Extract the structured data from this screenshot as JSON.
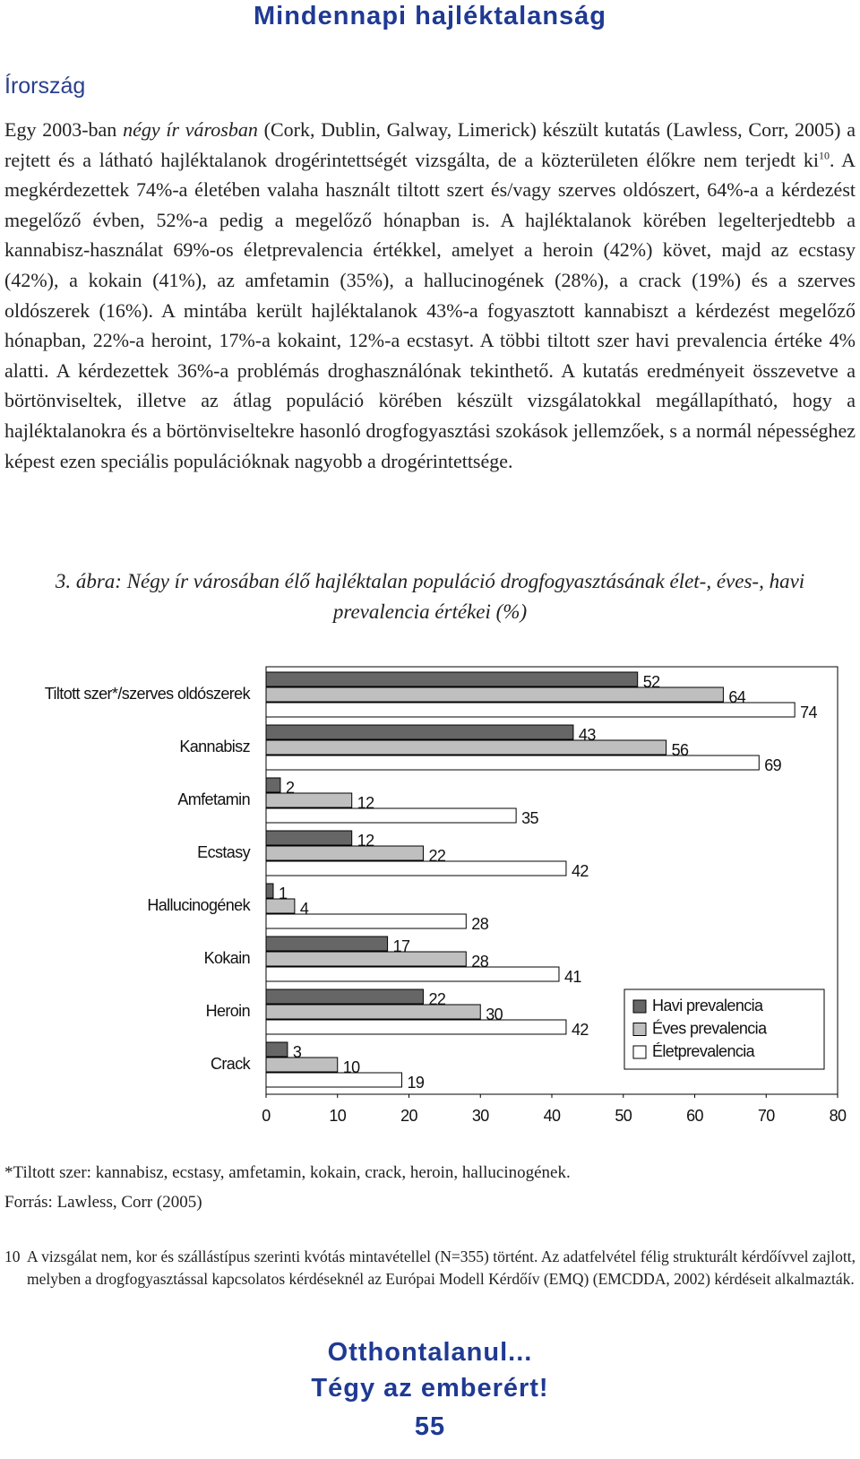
{
  "header": {
    "title": "Mindennapi hajléktalanság"
  },
  "section_title": "Írország",
  "paragraph": [
    "Egy 2003-ban ",
    "négy ír városban",
    " (Cork, Dublin, Galway, Limerick) készült kutatás (Lawless, Corr, 2005) a rejtett és a látható hajléktalanok drogérintettségét vizsgálta, de a közterületen élőkre nem terjedt ki",
    "10",
    ". A megkérdezettek 74%-a életében valaha használt tiltott szert és/vagy szerves oldószert, 64%-a a kérdezést megelőző évben, 52%-a pedig a megelőző hónapban is. A hajléktalanok körében legelterjedtebb a kannabisz-használat 69%-os életprevalencia értékkel, amelyet a heroin (42%) követ, majd az ecstasy (42%), a kokain (41%), az amfetamin (35%), a hallucinogének (28%), a crack (19%) és a szerves oldószerek (16%). A mintába került hajléktalanok 43%-a fogyasztott kannabiszt a kérdezést megelőző hónapban, 22%-a heroint, 17%-a kokaint, 12%-a ecstasyt. A többi tiltott szer havi prevalencia értéke 4% alatti. A kérdezettek 36%-a problémás droghasználónak tekinthető. A kutatás eredményeit összevetve a börtönviseltek, illetve az átlag populáció körében készült vizsgálatokkal megállapítható, hogy a hajléktalanokra és a börtönviseltekre hasonló drogfogyasztási szokások jellemzőek, s a normál népességhez képest ezen speciális populációknak nagyobb a drogérintettsége."
  ],
  "figure": {
    "caption": "3. ábra: Négy ír városában élő hajléktalan populáció drogfogyasztásának élet-, éves-, havi prevalencia értékei (%)"
  },
  "chart_data": {
    "type": "bar",
    "orientation": "horizontal",
    "categories": [
      "Tiltott szer*/szerves oldószerek",
      "Kannabisz",
      "Amfetamin",
      "Ecstasy",
      "Hallucinogének",
      "Kokain",
      "Heroin",
      "Crack"
    ],
    "series": [
      {
        "name": "Havi prevalencia",
        "color": "#666666",
        "values": [
          52,
          43,
          2,
          12,
          1,
          17,
          22,
          3
        ]
      },
      {
        "name": "Éves prevalencia",
        "color": "#bfbfbf",
        "values": [
          64,
          56,
          12,
          22,
          4,
          28,
          30,
          10
        ]
      },
      {
        "name": "Életprevalencia",
        "color": "#ffffff",
        "values": [
          74,
          69,
          35,
          42,
          28,
          41,
          42,
          19
        ]
      }
    ],
    "xlim": [
      0,
      80
    ],
    "xticks": [
      0,
      10,
      20,
      30,
      40,
      50,
      60,
      70,
      80
    ],
    "legend": "lower right"
  },
  "notes": [
    "*Tiltott szer: kannabisz, ecstasy, amfetamin, kokain, crack, heroin, hallucinogének.",
    "Forrás: Lawless, Corr (2005)"
  ],
  "footnote": {
    "number": "10",
    "text": "A vizsgálat nem, kor és szállástípus szerinti kvótás mintavétellel (N=355) történt. Az adatfelvétel félig strukturált kérdőívvel zajlott, melyben a drogfogyasztással kapcsolatos kérdéseknél az Európai Modell Kérdőív (EMQ) (EMCDDA, 2002) kérdéseit alkalmazták."
  },
  "footer": {
    "lines": [
      "Otthontalanul...",
      "Tégy az emberért!"
    ],
    "page_number": "55"
  }
}
